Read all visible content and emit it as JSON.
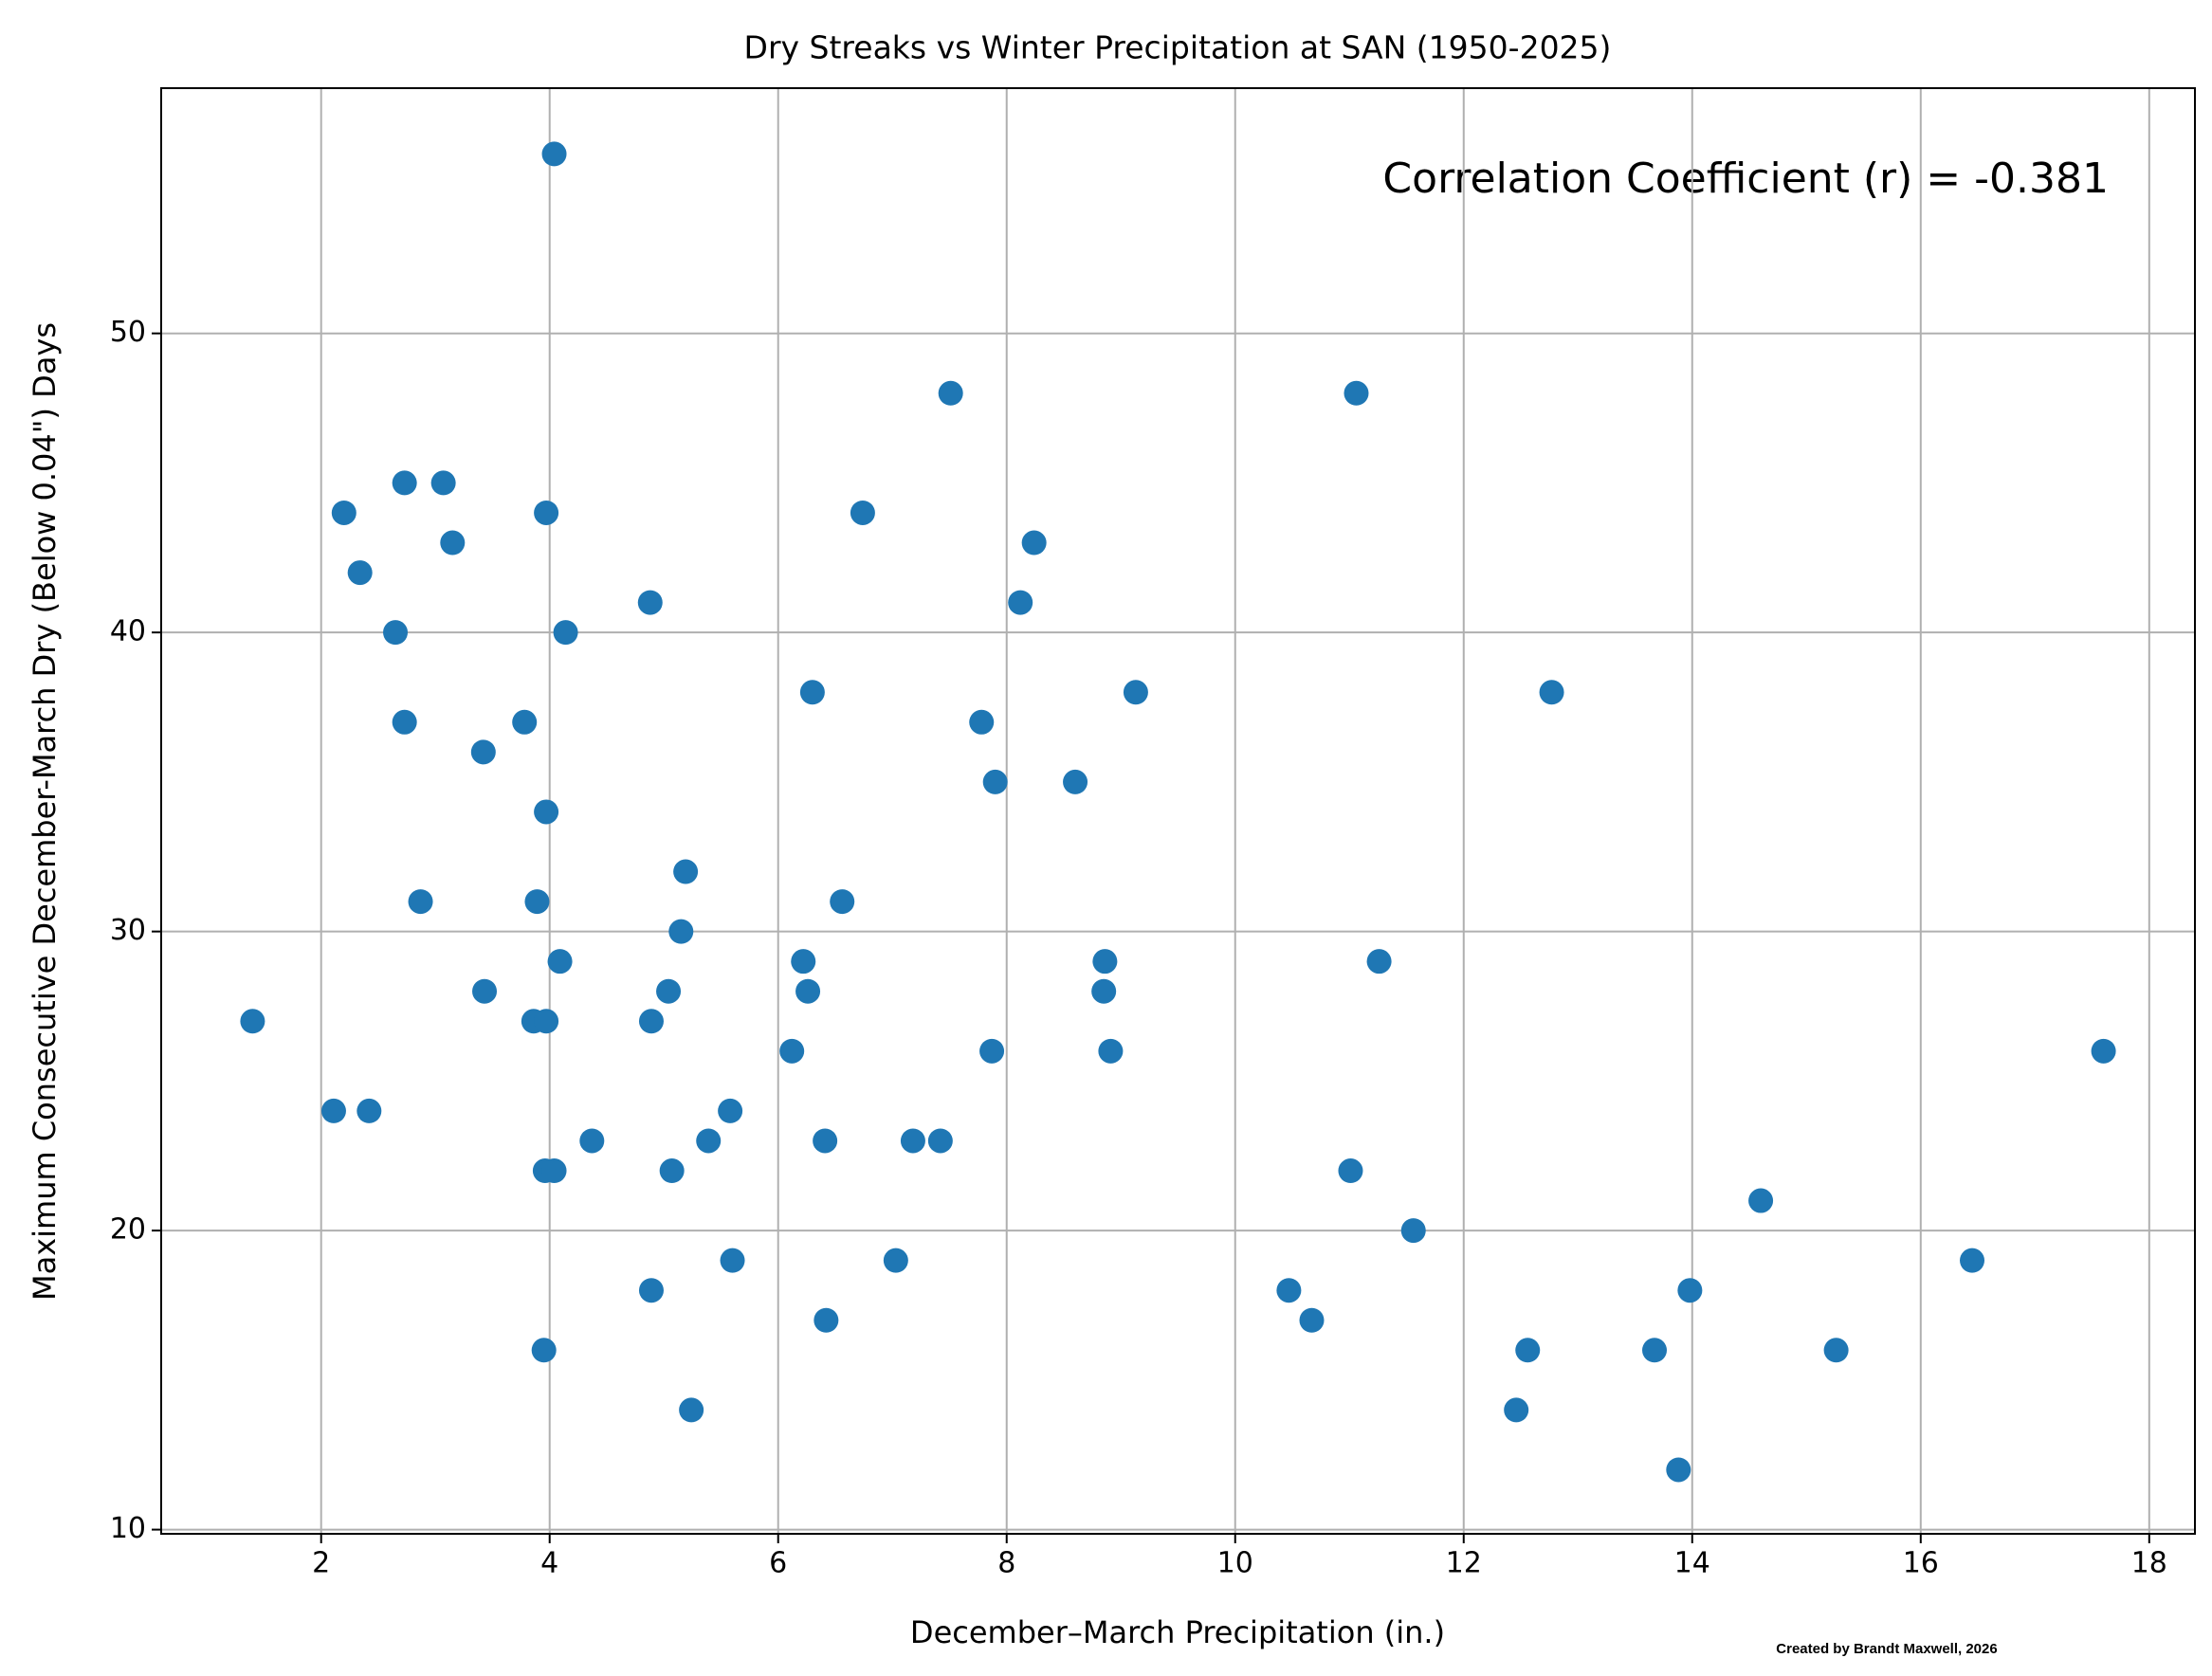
{
  "chart_data": {
    "type": "scatter",
    "title": "Dry Streaks vs Winter Precipitation at SAN (1950-2025)",
    "x_label": "December–March Precipitation (in.)",
    "y_label": "Maximum Consecutive December-March Dry (Below 0.04\") Days",
    "annotation": "Correlation Coefficient (r) = -0.381",
    "credit": "Created by Brandt Maxwell, 2026",
    "xlim": [
      0.6,
      18.4
    ],
    "ylim": [
      9.86,
      58.2
    ],
    "xticks": [
      2,
      4,
      6,
      8,
      10,
      12,
      14,
      16,
      18
    ],
    "yticks": [
      10,
      20,
      30,
      40,
      50
    ],
    "grid": true,
    "series": [
      {
        "color": "#1f77b4",
        "x": [
          1.4,
          2.11,
          2.2,
          2.34,
          2.42,
          2.65,
          2.73,
          2.73,
          2.87,
          3.07,
          3.15,
          3.42,
          3.43,
          3.78,
          3.86,
          3.89,
          3.95,
          3.96,
          3.97,
          3.97,
          3.97,
          4.04,
          4.04,
          4.09,
          4.14,
          4.37,
          4.88,
          4.89,
          4.89,
          5.04,
          5.07,
          5.15,
          5.19,
          5.24,
          5.39,
          5.58,
          5.6,
          6.12,
          6.22,
          6.26,
          6.3,
          6.41,
          6.42,
          6.56,
          6.74,
          7.03,
          7.18,
          7.42,
          7.51,
          7.78,
          7.87,
          7.9,
          8.12,
          8.24,
          8.6,
          8.85,
          8.86,
          8.91,
          9.13,
          10.47,
          10.67,
          11.01,
          11.06,
          11.26,
          11.56,
          12.46,
          12.56,
          12.77,
          13.67,
          13.88,
          13.98,
          14.6,
          15.26,
          16.45,
          17.6
        ],
        "values": [
          27,
          24,
          44,
          42,
          24,
          40,
          45,
          37,
          31,
          45,
          43,
          36,
          28,
          37,
          27,
          31,
          16,
          22,
          44,
          27,
          34,
          56,
          22,
          29,
          40,
          23,
          41,
          18,
          27,
          28,
          22,
          30,
          32,
          14,
          23,
          24,
          19,
          26,
          29,
          28,
          38,
          23,
          17,
          31,
          44,
          19,
          23,
          23,
          48,
          37,
          26,
          35,
          41,
          43,
          35,
          28,
          29,
          26,
          38,
          18,
          17,
          22,
          48,
          29,
          20,
          14,
          16,
          38,
          16,
          12,
          18,
          21,
          16,
          19,
          26
        ]
      }
    ]
  }
}
